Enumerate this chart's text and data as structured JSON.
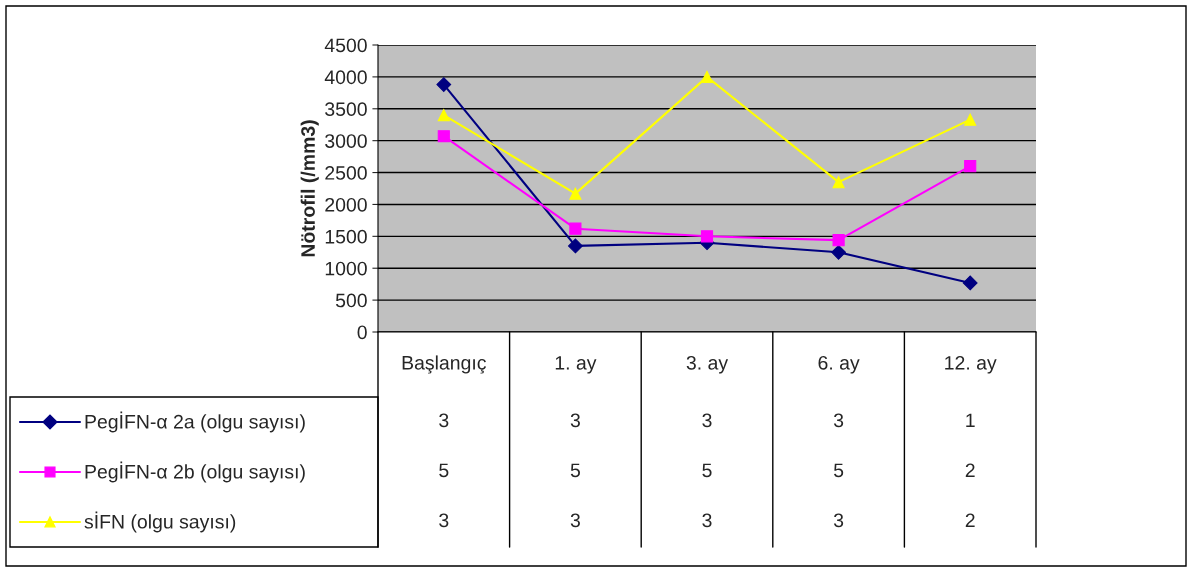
{
  "chart_data": {
    "type": "line",
    "ylabel": "Nötrofil (/mm3)",
    "categories": [
      "Başlangıç",
      "1. ay",
      "3. ay",
      "6. ay",
      "12. ay"
    ],
    "series": [
      {
        "name": "PegİFN-α 2a (olgu sayısı)",
        "color": "#000080",
        "marker": "diamond",
        "values": [
          3880,
          1350,
          1400,
          1250,
          770
        ]
      },
      {
        "name": "PegİFN-α 2b (olgu sayısı)",
        "color": "#ff00ff",
        "marker": "square",
        "values": [
          3070,
          1620,
          1500,
          1440,
          2600
        ]
      },
      {
        "name": "sİFN (olgu sayısı)",
        "color": "#ffff00",
        "marker": "triangle",
        "values": [
          3400,
          2170,
          4000,
          2350,
          3330
        ]
      }
    ],
    "annotations": [
      "3",
      "3",
      "3",
      "3",
      "1",
      "5",
      "5",
      "5",
      "5",
      "2",
      "3",
      "3",
      "3",
      "3",
      "2"
    ],
    "ylim": [
      0,
      4500
    ],
    "yticks": [
      0,
      500,
      1000,
      1500,
      2000,
      2500,
      3000,
      3500,
      4000,
      4500
    ],
    "grid": "y",
    "legend": "bottom left"
  }
}
